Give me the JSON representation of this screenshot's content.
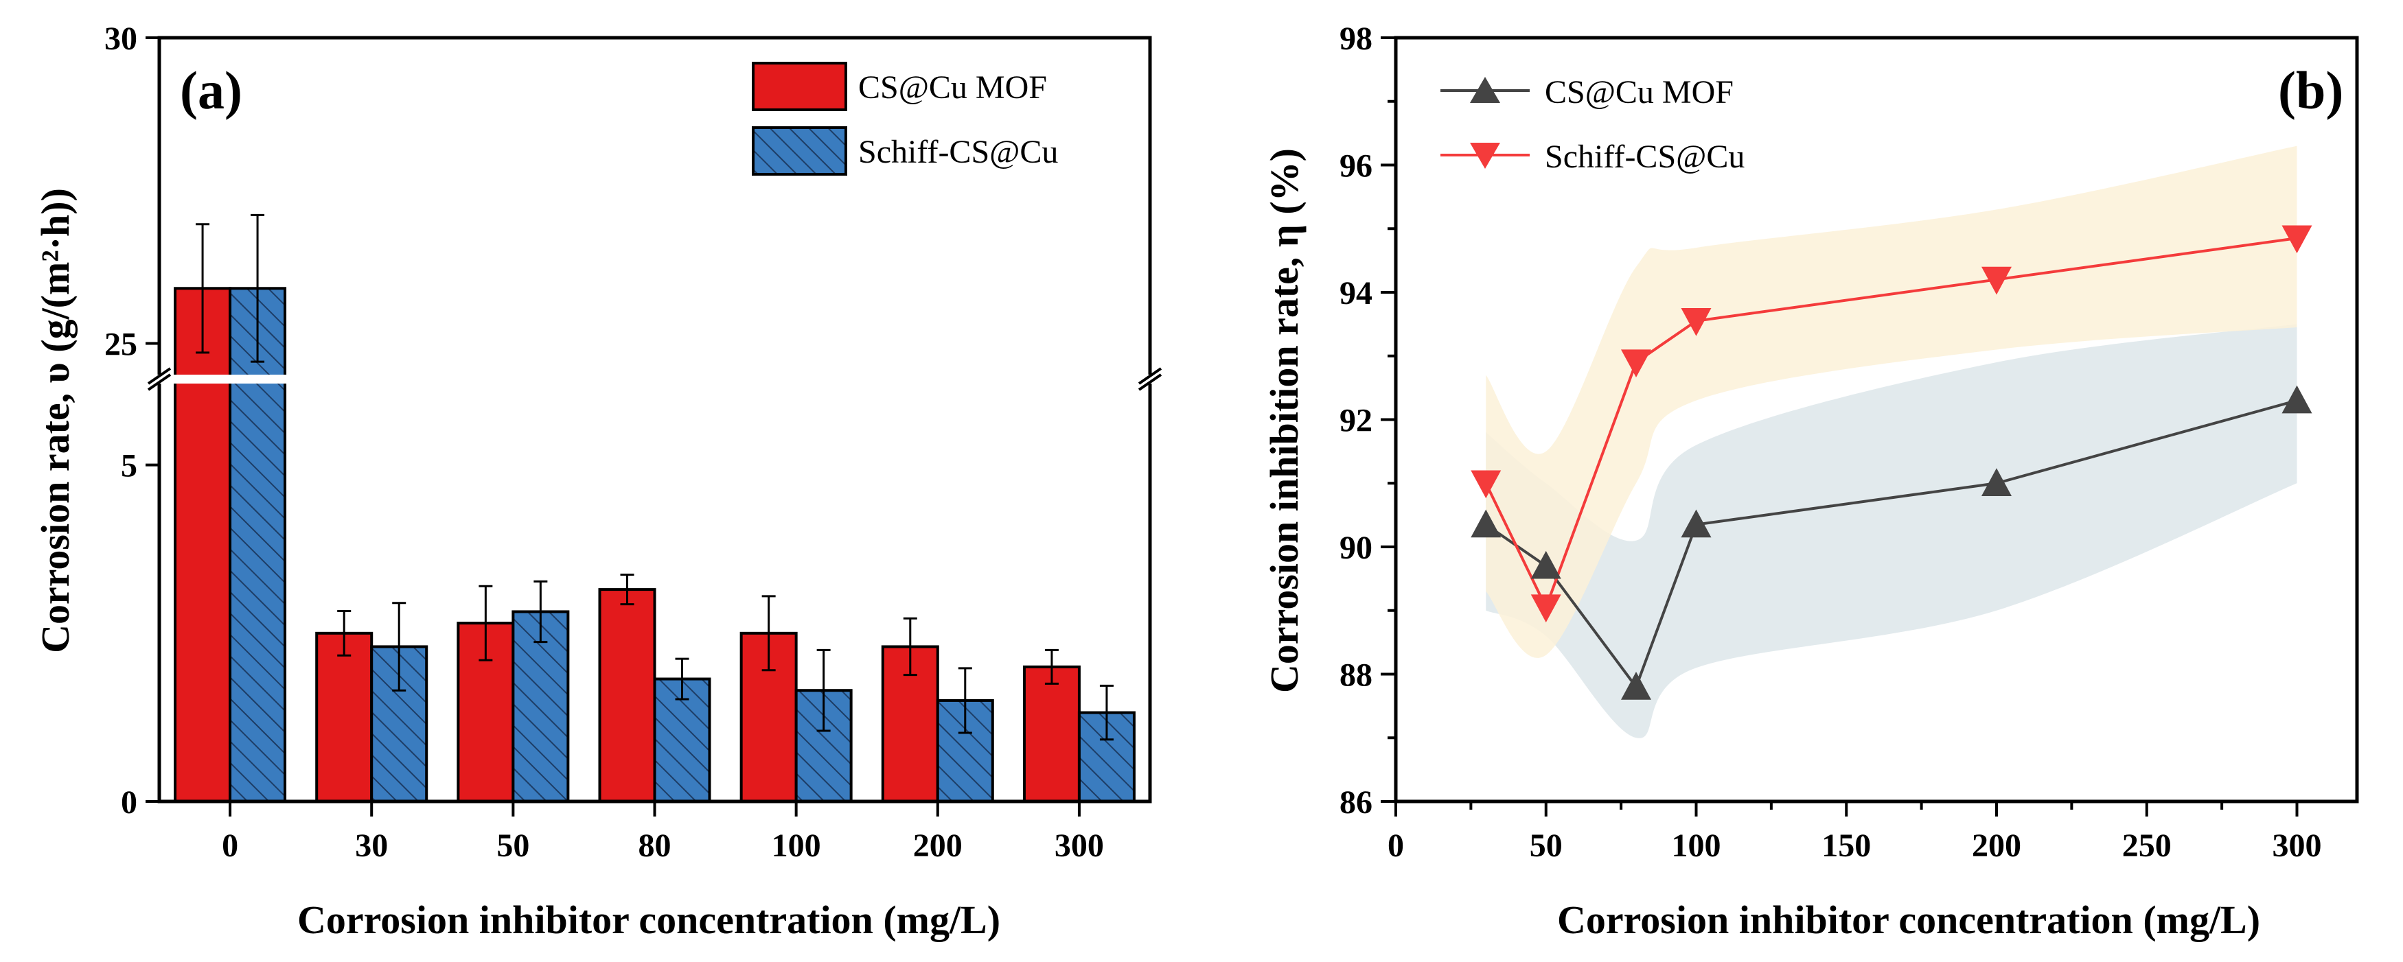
{
  "chart_data": [
    {
      "panel": "(a)",
      "type": "bar",
      "xlabel": "Corrosion inhibitor concentration (mg/L)",
      "ylabel": "Corrosion rate, υ (g/(m²·h))",
      "categories": [
        "0",
        "30",
        "50",
        "80",
        "100",
        "200",
        "300"
      ],
      "y_break": {
        "lower": [
          0,
          6.2
        ],
        "upper": [
          24.5,
          30
        ]
      },
      "lower_ticks": [
        "0",
        "5"
      ],
      "upper_ticks": [
        "25",
        "30"
      ],
      "series": [
        {
          "name": "CS@Cu MOF",
          "color": "#e31a1c",
          "pattern": "solid",
          "values": [
            25.9,
            2.5,
            2.65,
            3.15,
            2.5,
            2.3,
            2.0
          ],
          "errors": [
            1.05,
            0.33,
            0.55,
            0.22,
            0.55,
            0.42,
            0.25
          ]
        },
        {
          "name": "Schiff-CS@Cu",
          "color": "#3a7cbf",
          "pattern": "hatched",
          "values": [
            25.9,
            2.3,
            2.82,
            1.82,
            1.65,
            1.5,
            1.32
          ],
          "errors": [
            1.2,
            0.65,
            0.45,
            0.3,
            0.6,
            0.48,
            0.4
          ]
        }
      ]
    },
    {
      "panel": "(b)",
      "type": "line",
      "xlabel": "Corrosion inhibitor concentration (mg/L)",
      "ylabel": "Corrosion inhibition rate, η (%)",
      "xlim": [
        0,
        320
      ],
      "ylim": [
        86,
        98
      ],
      "xticks": [
        "0",
        "50",
        "100",
        "150",
        "200",
        "250",
        "300"
      ],
      "yticks": [
        "86",
        "88",
        "90",
        "92",
        "94",
        "96",
        "98"
      ],
      "x": [
        30,
        50,
        80,
        100,
        200,
        300
      ],
      "series": [
        {
          "name": "CS@Cu MOF",
          "color": "#444444",
          "band_color": "#dde6ea",
          "marker": "triangle-up",
          "values": [
            90.35,
            89.7,
            87.8,
            90.35,
            91.0,
            92.3
          ],
          "band_upper": [
            91.8,
            91.0,
            90.1,
            91.6,
            92.9,
            93.5
          ],
          "band_lower": [
            89.0,
            88.6,
            87.0,
            88.1,
            89.0,
            91.0
          ]
        },
        {
          "name": "Schiff-CS@Cu",
          "color": "#f43b3b",
          "band_color": "#fcf1d8",
          "marker": "triangle-down",
          "values": [
            91.0,
            89.05,
            92.9,
            93.55,
            94.2,
            94.85
          ],
          "band_upper": [
            92.7,
            91.5,
            94.4,
            94.7,
            95.3,
            96.3
          ],
          "band_lower": [
            89.3,
            88.3,
            91.0,
            92.3,
            93.1,
            93.45
          ]
        }
      ]
    }
  ]
}
